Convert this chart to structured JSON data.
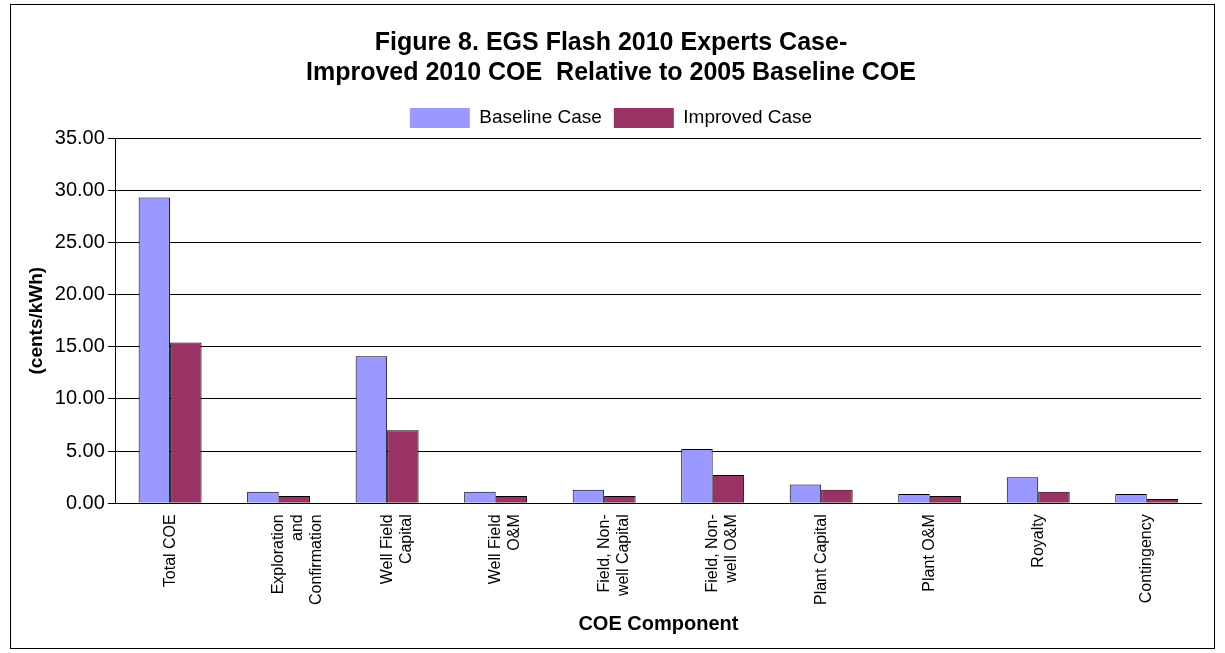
{
  "chart_data": {
    "type": "bar",
    "title": [
      "Figure 8. EGS Flash 2010 Experts Case-",
      "Improved 2010 COE  Relative to 2005 Baseline COE"
    ],
    "xlabel": "COE Component",
    "ylabel": "(cents/kWh)",
    "categories": [
      "Total COE",
      "Exploration and Confirmation",
      "Well Field Capital",
      "Well Field O&M",
      "Field, Non-well Capital",
      "Field, Non-well O&M",
      "Plant Capital",
      "Plant O&M",
      "Royalty",
      "Contingency"
    ],
    "series": [
      {
        "name": "Baseline Case",
        "color": "#9999ff",
        "values": [
          29.3,
          1.1,
          14.1,
          1.1,
          1.3,
          5.2,
          1.8,
          0.9,
          2.5,
          0.9
        ]
      },
      {
        "name": "Improved Case",
        "color": "#993366",
        "values": [
          15.4,
          0.7,
          7.0,
          0.7,
          0.7,
          2.7,
          1.3,
          0.7,
          1.1,
          0.4
        ]
      }
    ],
    "ylim": [
      0,
      35
    ],
    "yticks": [
      {
        "value": 0,
        "label": "0.00"
      },
      {
        "value": 5,
        "label": "5.00"
      },
      {
        "value": 10,
        "label": "10.00"
      },
      {
        "value": 15,
        "label": "15.00"
      },
      {
        "value": 20,
        "label": "20.00"
      },
      {
        "value": 25,
        "label": "25.00"
      },
      {
        "value": 30,
        "label": "30.00"
      },
      {
        "value": 35,
        "label": "35.00"
      }
    ],
    "grid": "y",
    "legend": "top"
  }
}
